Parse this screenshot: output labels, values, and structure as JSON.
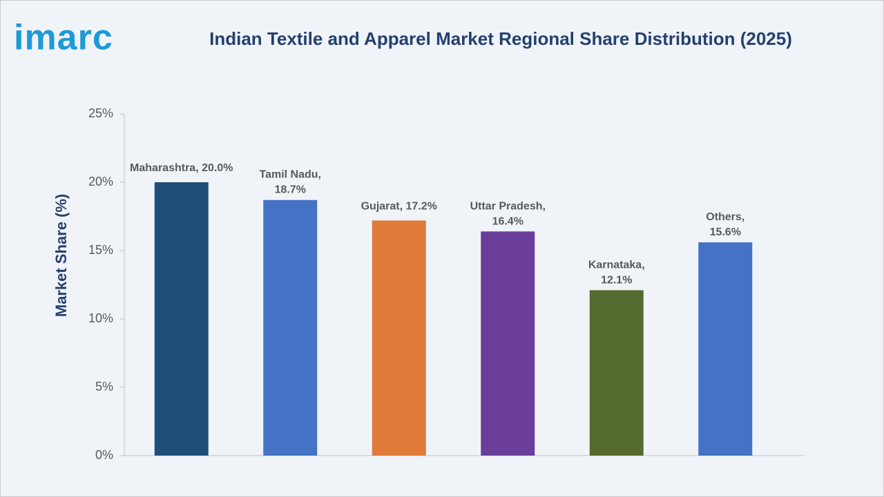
{
  "logo": "imarc",
  "chart_data": {
    "type": "bar",
    "title": "Indian Textile and Apparel Market Regional Share Distribution (2025)",
    "y_label": "Market Share (%)",
    "values": [
      20.0,
      18.7,
      17.2,
      16.4,
      12.1,
      15.6
    ],
    "value_labels": [
      "Maharashtra, 20.0%",
      "Tamil Nadu, 18.7%",
      "Gujarat, 17.2%",
      "Uttar Pradesh, 16.4%",
      "Karnataka, 12.1%",
      "Others, 15.6%"
    ],
    "colors": [
      "#1f4e79",
      "#4472c4",
      "#e07b39",
      "#6a3d9a",
      "#556b2f",
      "#4472c4"
    ],
    "ylim": [
      0,
      25
    ],
    "yticks": [
      {
        "value": 0,
        "label": "0%"
      },
      {
        "value": 5,
        "label": "5%"
      },
      {
        "value": 10,
        "label": "10%"
      },
      {
        "value": 15,
        "label": "15%"
      },
      {
        "value": 20,
        "label": "20%"
      },
      {
        "value": 25,
        "label": "25%"
      }
    ],
    "grid": false
  }
}
